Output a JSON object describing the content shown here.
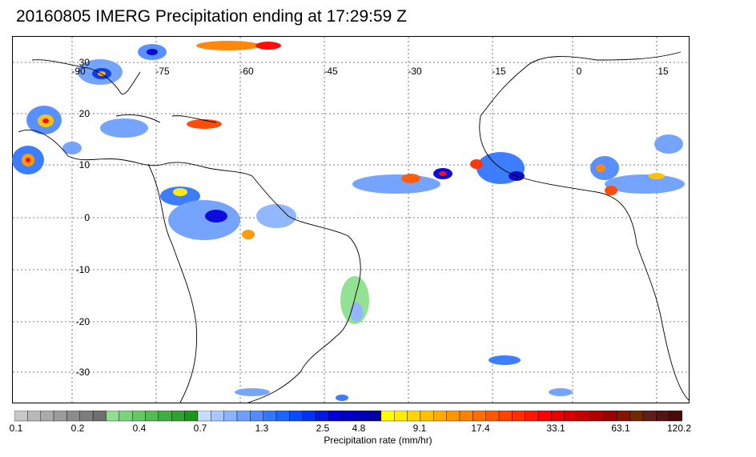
{
  "title": "20160805 IMERG Precipitation ending at 17:29:59 Z",
  "map": {
    "lon_labels": [
      "-90",
      "-75",
      "-60",
      "-45",
      "-30",
      "-15",
      "0",
      "15"
    ],
    "lat_labels": [
      "30",
      "20",
      "10",
      "0",
      "-10",
      "-20",
      "-30"
    ]
  },
  "colorbar": {
    "tick_labels": [
      "0.1",
      "0.2",
      "0.4",
      "0.7",
      "1.3",
      "2.5",
      "4.8",
      "9.1",
      "17.4",
      "33.1",
      "63.1",
      "120.2"
    ],
    "caption": "Precipitation rate (mm/hr)",
    "colors": [
      "#c8c8c8",
      "#b9b9b9",
      "#aaaaaa",
      "#9b9b9b",
      "#8c8c8c",
      "#7d7d7d",
      "#6f6f6f",
      "#8ee08e",
      "#7ad47a",
      "#67c767",
      "#53bb53",
      "#40ae40",
      "#2da22d",
      "#1a961a",
      "#c8dcff",
      "#aac8ff",
      "#8cb4ff",
      "#6ea0ff",
      "#508cff",
      "#3278ff",
      "#1e64ff",
      "#0a4bff",
      "#0032f0",
      "#0019e6",
      "#0000dc",
      "#0000c8",
      "#0000b4",
      "#0000a0",
      "#ffff00",
      "#ffea00",
      "#ffd500",
      "#ffc000",
      "#ffab00",
      "#ff9600",
      "#ff8100",
      "#ff6c00",
      "#ff5700",
      "#ff4200",
      "#ff2d00",
      "#ff1800",
      "#ff0000",
      "#eb0000",
      "#d70000",
      "#c30000",
      "#af0000",
      "#9b0000",
      "#871400",
      "#732800",
      "#5f1e1e",
      "#551414",
      "#4b0a0a"
    ]
  }
}
